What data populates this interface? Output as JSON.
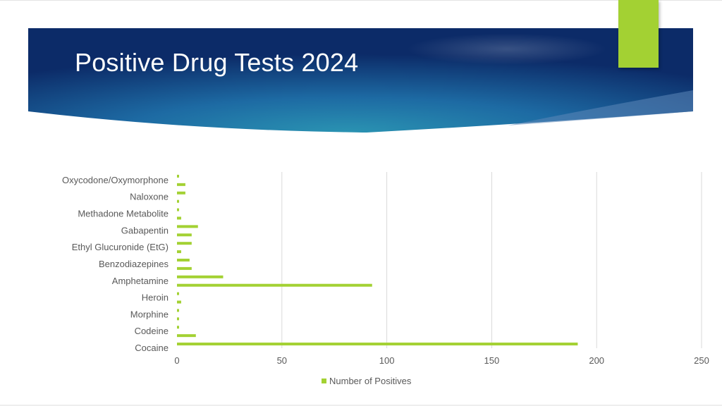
{
  "slide": {
    "title": "Positive Drug Tests 2024"
  },
  "colors": {
    "banner_dark": "#0d2f6b",
    "banner_mid": "#1a5a9a",
    "banner_light": "#2a8fb0",
    "accent": "#a3d133",
    "bar": "#a3d133",
    "gridline": "#d9d9d9",
    "text": "#595959"
  },
  "chart_data": {
    "type": "bar",
    "orientation": "horizontal",
    "title": "",
    "xlabel": "",
    "ylabel": "",
    "xlim": [
      0,
      250
    ],
    "x_ticks": [
      0,
      50,
      100,
      150,
      200,
      250
    ],
    "grid": true,
    "legend": "bottom",
    "category_labels_shown": [
      "Oxycodone/Oxymorphone",
      "Naloxone",
      "Methadone Metabolite",
      "Gabapentin",
      "Ethyl Glucuronide (EtG)",
      "Benzodiazepines",
      "Amphetamine",
      "Heroin",
      "Morphine",
      "Codeine",
      "Cocaine"
    ],
    "series": [
      {
        "name": "Number of Positives",
        "values": [
          1,
          4,
          4,
          1,
          1,
          2,
          10,
          7,
          7,
          2,
          6,
          7,
          22,
          93,
          1,
          2,
          1,
          1,
          1,
          9,
          191
        ]
      }
    ]
  },
  "legend": {
    "label": "Number of Positives"
  }
}
